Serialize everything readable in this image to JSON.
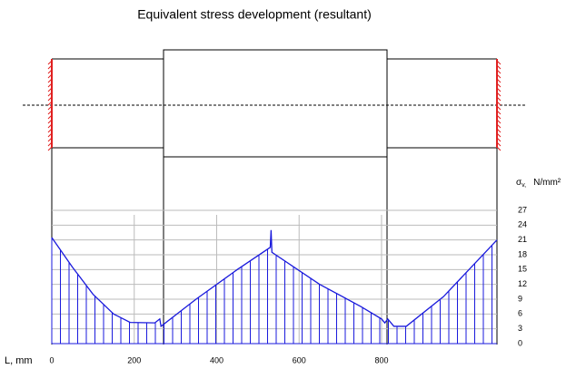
{
  "chart_data": {
    "type": "area-hatch",
    "title": "Equivalent stress development (resultant)",
    "x_label": "L, mm",
    "y_label_symbol": "σ",
    "y_label_sub": "v,",
    "y_label_unit": "N/mm²",
    "x": [
      0,
      50,
      100,
      150,
      190,
      250,
      262,
      265,
      350,
      450,
      530,
      532,
      534,
      650,
      750,
      800,
      808,
      815,
      830,
      860,
      950,
      1080
    ],
    "values": [
      21.5,
      15.5,
      10,
      6,
      4.3,
      4.2,
      5,
      3.5,
      9,
      15,
      19.5,
      23,
      18.5,
      12,
      7.5,
      5,
      4.2,
      5,
      3.5,
      3.5,
      9.5,
      21
    ],
    "color": "#1a1adc",
    "xlim": [
      0,
      1080
    ],
    "xticks": [
      0,
      200,
      400,
      600,
      800
    ],
    "ylim": [
      0,
      27
    ],
    "yticks": [
      0,
      3,
      6,
      9,
      12,
      15,
      18,
      21,
      24,
      27
    ],
    "grid": true
  }
}
